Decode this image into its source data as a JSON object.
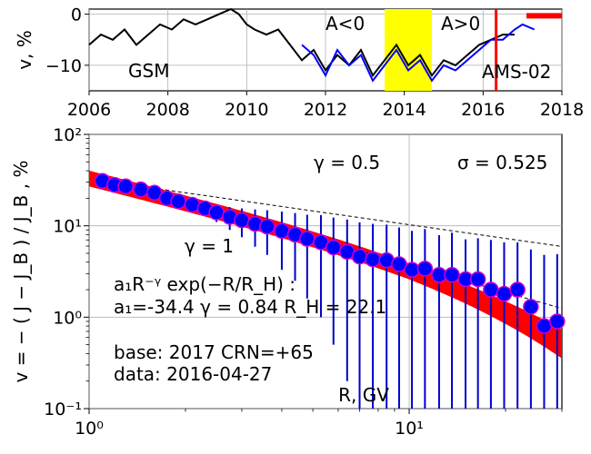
{
  "chart_data": [
    {
      "type": "line",
      "panel": "top",
      "ylabel": "v, %",
      "xlim": [
        2006,
        2018
      ],
      "ylim": [
        -15,
        1
      ],
      "xticks": [
        "2006",
        "2008",
        "2010",
        "2012",
        "2014",
        "2016",
        "2018"
      ],
      "yticks": [
        "0",
        "−10"
      ],
      "grid": true,
      "series": [
        {
          "name": "GSM",
          "color": "#000000",
          "x": [
            2006.0,
            2006.3,
            2006.6,
            2006.9,
            2007.2,
            2007.5,
            2007.8,
            2008.1,
            2008.4,
            2008.7,
            2009.0,
            2009.3,
            2009.6,
            2009.8,
            2010.0,
            2010.2,
            2010.5,
            2010.8,
            2011.1,
            2011.4,
            2011.7,
            2012.0,
            2012.3,
            2012.6,
            2012.9,
            2013.2,
            2013.5,
            2013.8,
            2014.1,
            2014.4,
            2014.7,
            2015.0,
            2015.3,
            2015.6,
            2015.9,
            2016.2,
            2016.5,
            2016.8
          ],
          "y": [
            -6,
            -4,
            -5,
            -3,
            -6,
            -4,
            -2,
            -3,
            -1,
            -2,
            -1,
            0,
            1,
            0,
            -2,
            -3,
            -4,
            -3,
            -6,
            -9,
            -7,
            -11,
            -8,
            -10,
            -7,
            -12,
            -9,
            -6,
            -10,
            -8,
            -12,
            -9,
            -10,
            -8,
            -6,
            -5,
            -4,
            -4
          ]
        },
        {
          "name": "AMS-02",
          "color": "#0000ff",
          "x": [
            2011.4,
            2011.7,
            2012.0,
            2012.3,
            2012.6,
            2012.9,
            2013.2,
            2013.5,
            2013.8,
            2014.1,
            2014.4,
            2014.7,
            2015.0,
            2015.3,
            2015.6,
            2015.9,
            2016.2,
            2016.5,
            2016.8,
            2017.0,
            2017.3
          ],
          "y": [
            -6,
            -8,
            -12,
            -7,
            -10,
            -8,
            -13,
            -10,
            -7,
            -11,
            -9,
            -13,
            -10,
            -11,
            -9,
            -7,
            -5,
            -5,
            -3,
            -2,
            -3
          ]
        }
      ],
      "shaded_regions": [
        {
          "x": [
            2013.5,
            2014.7
          ],
          "color": "#ffff00"
        }
      ],
      "vlines": [
        {
          "x": 2016.33,
          "color": "#ff0000"
        }
      ],
      "marker_bar": {
        "x": [
          2017.1,
          2018.0
        ],
        "y": -0.3,
        "color": "#ff0000"
      },
      "annotations": [
        "GSM",
        "A<0",
        "A>0",
        "AMS-02"
      ]
    },
    {
      "type": "scatter",
      "panel": "bottom",
      "xlabel": "R, GV",
      "ylabel": "v = − ( J − J_B ) / J_B , %",
      "xscale": "log",
      "yscale": "log",
      "xlim": [
        1,
        30
      ],
      "ylim": [
        0.1,
        100
      ],
      "xticks": [
        "10⁰",
        "10¹"
      ],
      "yticks": [
        "10⁻¹",
        "10⁰",
        "10¹",
        "10²"
      ],
      "grid": true,
      "points": {
        "x": [
          1.1,
          1.2,
          1.3,
          1.45,
          1.6,
          1.75,
          1.9,
          2.1,
          2.3,
          2.5,
          2.75,
          3.0,
          3.3,
          3.6,
          4.0,
          4.4,
          4.8,
          5.3,
          5.8,
          6.4,
          7.0,
          7.7,
          8.5,
          9.3,
          10.2,
          11.2,
          12.4,
          13.6,
          15.0,
          16.4,
          18.0,
          19.8,
          21.8,
          24.0,
          26.4,
          29.0
        ],
        "y": [
          31,
          28,
          27,
          25,
          23,
          20,
          18.5,
          17,
          15.5,
          14,
          12.5,
          11.5,
          10.5,
          9.8,
          8.8,
          8.0,
          7.2,
          6.6,
          5.8,
          5.2,
          4.6,
          4.3,
          4.2,
          3.8,
          3.3,
          3.4,
          2.9,
          2.9,
          2.6,
          2.6,
          2.0,
          1.8,
          2.0,
          1.3,
          0.8,
          0.9
        ],
        "err_low": [
          0.5,
          0.6,
          0.7,
          0.9,
          1.0,
          1.3,
          1.6,
          2.0,
          2.5,
          3.0,
          3.5,
          4.0,
          4.6,
          5.0,
          5.5,
          5.5,
          5.6,
          5.6,
          5.3,
          5.0,
          4.5,
          4.2,
          4.1,
          3.7,
          3.25,
          3.35,
          2.87,
          2.87,
          2.58,
          2.58,
          1.99,
          1.79,
          1.99,
          1.29,
          0.79,
          0.89
        ],
        "err_high": [
          0.5,
          0.6,
          0.7,
          0.9,
          1.0,
          1.3,
          1.6,
          2.0,
          2.5,
          3.0,
          3.5,
          4.0,
          4.6,
          5.0,
          5.5,
          5.8,
          6.0,
          6.5,
          6.5,
          6.5,
          6.3,
          6.2,
          6.1,
          5.8,
          5.5,
          5.8,
          5.0,
          5.5,
          4.5,
          4.7,
          5.0,
          4.8,
          4.6,
          4.2,
          4.0,
          4.0
        ],
        "marker_color": "#0000ff",
        "edge_color": "#cc00cc",
        "errbar_color": "#0000cc"
      },
      "fit": {
        "a1": -34.4,
        "gamma": 0.84,
        "R_H": 22.1,
        "band_width_rel": 0.22,
        "color": "#ff0000"
      },
      "reference_lines": [
        {
          "gamma": 1.0,
          "anchor_x": 1.1,
          "anchor_y": 34,
          "style": "dashed"
        },
        {
          "gamma": 0.5,
          "anchor_x": 1.1,
          "anchor_y": 31,
          "style": "dashed"
        }
      ],
      "annotations": {
        "gamma_half": "γ = 0.5",
        "sigma": "σ = 0.525",
        "gamma_one": "γ = 1",
        "formula": "a₁R⁻ᵞ exp(−R/R_H) :",
        "params": "a₁=-34.4  γ = 0.84  R_H = 22.1",
        "base": "base: 2017   CRN=+65",
        "data": "data: 2016-04-27"
      }
    }
  ]
}
